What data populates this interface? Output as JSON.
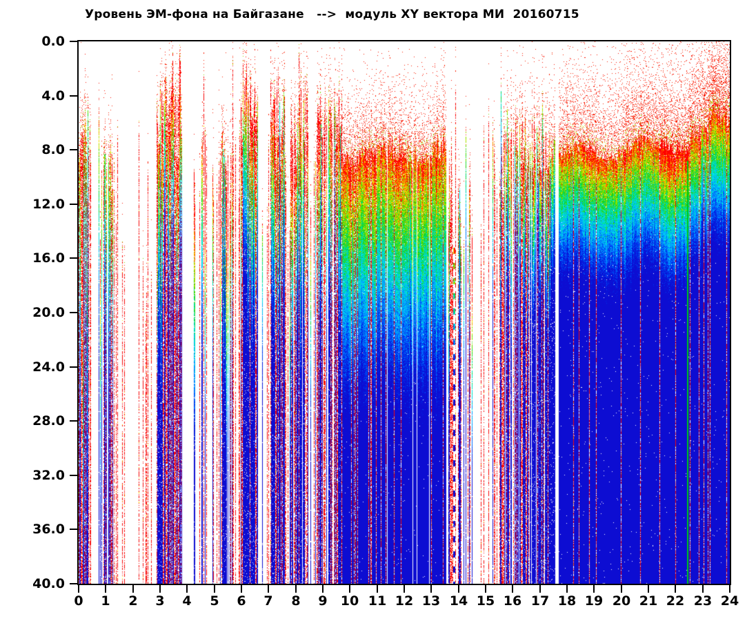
{
  "page": {
    "background": "#ffffff"
  },
  "chart_data": {
    "type": "heatmap",
    "subtype": "daily-spectrogram",
    "title": "Уровень ЭМ-фона на Байгазане   -->  модуль XY вектора МИ  20160715",
    "station": "Байгазан",
    "parameter": "модуль XY вектора МИ",
    "date": "20160715",
    "grid": false,
    "frame_color": "#000000",
    "background_color": "#ffffff",
    "x_axis": {
      "min": 0,
      "max": 24,
      "tick_step": 1,
      "tick_labels": [
        "0",
        "1",
        "2",
        "3",
        "4",
        "5",
        "6",
        "7",
        "8",
        "9",
        "10",
        "11",
        "12",
        "13",
        "14",
        "15",
        "16",
        "17",
        "18",
        "19",
        "20",
        "21",
        "22",
        "23",
        "24"
      ]
    },
    "y_axis": {
      "min": 0,
      "max": 40,
      "tick_step": 4,
      "inverted": true,
      "tick_labels": [
        "0.0",
        "4.0",
        "8.0",
        "12.0",
        "16.0",
        "20.0",
        "24.0",
        "28.0",
        "32.0",
        "36.0",
        "40.0"
      ]
    },
    "colormap": {
      "below_threshold": "#ffffff",
      "stops": [
        {
          "u": 0.0,
          "c": "#ff0000"
        },
        {
          "u": 0.07,
          "c": "#ff5000"
        },
        {
          "u": 0.15,
          "c": "#ffe600"
        },
        {
          "u": 0.24,
          "c": "#8ce600"
        },
        {
          "u": 0.33,
          "c": "#1ed200"
        },
        {
          "u": 0.43,
          "c": "#00dc8c"
        },
        {
          "u": 0.53,
          "c": "#00e6e6"
        },
        {
          "u": 0.65,
          "c": "#00aaff"
        },
        {
          "u": 0.77,
          "c": "#0064ff"
        },
        {
          "u": 0.88,
          "c": "#0028e6"
        },
        {
          "u": 1.0,
          "c": "#0d0dd2"
        }
      ]
    },
    "render_seed": 20160715,
    "activity_segments": [
      {
        "start": 0.0,
        "end": 0.45,
        "mode": "streaks",
        "density": 0.92,
        "ftop": 7.5,
        "ftop_var": 2.0,
        "span": 22,
        "red_streak": 0.28,
        "spread": 2.5
      },
      {
        "start": 0.45,
        "end": 0.7,
        "mode": "gap"
      },
      {
        "start": 0.7,
        "end": 1.25,
        "mode": "streaks",
        "density": 0.85,
        "ftop": 10.0,
        "ftop_var": 2.5,
        "span": 20,
        "red_streak": 0.33,
        "spread": 2.5
      },
      {
        "start": 1.25,
        "end": 1.75,
        "mode": "streaks",
        "density": 0.45,
        "ftop": 13.0,
        "ftop_var": 3.0,
        "span": 18,
        "red_streak": 0.55,
        "spread": 2.0
      },
      {
        "start": 1.75,
        "end": 2.1,
        "mode": "gap"
      },
      {
        "start": 2.1,
        "end": 2.6,
        "mode": "streaks",
        "density": 0.3,
        "ftop": 15.0,
        "ftop_var": 4.0,
        "span": 16,
        "red_streak": 0.7,
        "spread": 1.5
      },
      {
        "start": 2.6,
        "end": 2.85,
        "mode": "streaks",
        "density": 0.15,
        "ftop": 18.0,
        "ftop_var": 4.0,
        "span": 16,
        "red_streak": 0.8,
        "spread": 1.5
      },
      {
        "start": 2.85,
        "end": 3.15,
        "mode": "streaks",
        "density": 0.75,
        "ftop": 6.5,
        "ftop_var": 2.0,
        "span": 14,
        "red_streak": 0.35,
        "spread": 2.5
      },
      {
        "start": 3.15,
        "end": 3.8,
        "mode": "streaks",
        "density": 0.95,
        "ftop": 4.3,
        "ftop_var": 1.5,
        "span": 12,
        "red_streak": 0.3,
        "spread": 2.0
      },
      {
        "start": 3.8,
        "end": 4.15,
        "mode": "gap"
      },
      {
        "start": 4.15,
        "end": 5.1,
        "mode": "streaks",
        "density": 0.32,
        "ftop": 11.0,
        "ftop_var": 3.5,
        "span": 16,
        "red_streak": 0.65,
        "spread": 2.0
      },
      {
        "start": 5.1,
        "end": 5.6,
        "mode": "streaks",
        "density": 0.55,
        "ftop": 9.0,
        "ftop_var": 2.5,
        "span": 16,
        "red_streak": 0.45,
        "spread": 2.5
      },
      {
        "start": 5.6,
        "end": 6.05,
        "mode": "streaks",
        "density": 0.5,
        "ftop": 8.0,
        "ftop_var": 2.5,
        "span": 15,
        "red_streak": 0.45,
        "spread": 2.5
      },
      {
        "start": 6.05,
        "end": 6.6,
        "mode": "streaks",
        "density": 0.92,
        "ftop": 5.0,
        "ftop_var": 1.6,
        "span": 13,
        "red_streak": 0.3,
        "spread": 2.0
      },
      {
        "start": 6.6,
        "end": 7.05,
        "mode": "streaks",
        "density": 0.3,
        "ftop": 11.0,
        "ftop_var": 3.0,
        "span": 15,
        "red_streak": 0.6,
        "spread": 2.0
      },
      {
        "start": 7.05,
        "end": 7.6,
        "mode": "streaks",
        "density": 0.93,
        "ftop": 5.8,
        "ftop_var": 1.6,
        "span": 13,
        "red_streak": 0.3,
        "spread": 2.2
      },
      {
        "start": 7.6,
        "end": 7.8,
        "mode": "streaks",
        "density": 0.25,
        "ftop": 12.0,
        "ftop_var": 3.0,
        "span": 15,
        "red_streak": 0.6,
        "spread": 2.0
      },
      {
        "start": 7.8,
        "end": 8.45,
        "mode": "streaks",
        "density": 0.88,
        "ftop": 6.2,
        "ftop_var": 1.8,
        "span": 14,
        "red_streak": 0.32,
        "spread": 2.5
      },
      {
        "start": 8.45,
        "end": 8.75,
        "mode": "streaks",
        "density": 0.3,
        "ftop": 12.0,
        "ftop_var": 3.0,
        "span": 15,
        "red_streak": 0.55,
        "spread": 2.0
      },
      {
        "start": 8.75,
        "end": 9.7,
        "mode": "streaks",
        "density": 0.88,
        "ftop": 5.8,
        "ftop_var": 1.8,
        "span": 14,
        "red_streak": 0.3,
        "spread": 2.5
      },
      {
        "start": 9.7,
        "end": 13.55,
        "mode": "block",
        "density": 0.985,
        "ftop": 8.2,
        "ftop_var": 1.2,
        "span": 17,
        "red_streak": 0.1,
        "spread": 3.2,
        "cloud": 0.5
      },
      {
        "start": 13.55,
        "end": 13.78,
        "mode": "streaks",
        "density": 0.6,
        "ftop": 13.0,
        "ftop_var": 3.0,
        "span": 14,
        "red_streak": 0.4,
        "spread": 2.0
      },
      {
        "start": 13.78,
        "end": 13.88,
        "mode": "block",
        "density": 1.0,
        "ftop": 15.0,
        "ftop_var": 1.0,
        "span": 10,
        "red_streak": 0.0,
        "spread": 1.0,
        "cloud": 0.2
      },
      {
        "start": 13.88,
        "end": 14.5,
        "mode": "streaks",
        "density": 0.5,
        "ftop": 11.0,
        "ftop_var": 3.5,
        "span": 14,
        "red_streak": 0.45,
        "spread": 2.0
      },
      {
        "start": 14.5,
        "end": 15.25,
        "mode": "streaks",
        "density": 0.12,
        "ftop": 14.0,
        "ftop_var": 5.0,
        "span": 15,
        "red_streak": 0.75,
        "spread": 1.5
      },
      {
        "start": 15.25,
        "end": 15.65,
        "mode": "streaks",
        "density": 0.55,
        "ftop": 9.5,
        "ftop_var": 3.0,
        "span": 15,
        "red_streak": 0.45,
        "spread": 2.2
      },
      {
        "start": 15.65,
        "end": 16.1,
        "mode": "streaks",
        "density": 0.8,
        "ftop": 7.5,
        "ftop_var": 2.0,
        "span": 12,
        "red_streak": 0.3,
        "spread": 2.8
      },
      {
        "start": 16.1,
        "end": 17.55,
        "mode": "streaks",
        "density": 0.94,
        "ftop": 7.8,
        "ftop_var": 1.6,
        "span": 10,
        "red_streak": 0.18,
        "spread": 3.2
      },
      {
        "start": 17.55,
        "end": 17.68,
        "mode": "gap"
      },
      {
        "start": 17.68,
        "end": 20.0,
        "mode": "block",
        "density": 1.0,
        "ftop": 8.2,
        "ftop_var": 0.8,
        "span": 9,
        "red_streak": 0.05,
        "spread": 4.2,
        "cloud": 0.45
      },
      {
        "start": 20.0,
        "end": 21.4,
        "mode": "block",
        "density": 1.0,
        "ftop": 7.8,
        "ftop_var": 0.8,
        "span": 9,
        "red_streak": 0.05,
        "spread": 4.6,
        "cloud": 0.5
      },
      {
        "start": 21.4,
        "end": 22.45,
        "mode": "block",
        "density": 1.0,
        "ftop": 7.5,
        "ftop_var": 0.8,
        "span": 9,
        "red_streak": 0.08,
        "spread": 4.8,
        "cloud": 0.5
      },
      {
        "start": 22.45,
        "end": 23.2,
        "mode": "block",
        "density": 1.0,
        "ftop": 7.0,
        "ftop_var": 0.8,
        "span": 9,
        "red_streak": 0.06,
        "spread": 5.2,
        "cloud": 0.55
      },
      {
        "start": 23.2,
        "end": 24.0,
        "mode": "block",
        "density": 1.0,
        "ftop": 5.8,
        "ftop_var": 0.9,
        "span": 9,
        "red_streak": 0.08,
        "spread": 5.8,
        "cloud": 0.62
      }
    ],
    "features": [
      {
        "type": "dashed-white-line",
        "hour": 13.81
      },
      {
        "type": "white-line",
        "hour": 17.62
      },
      {
        "type": "lighten-band",
        "start": 21.4,
        "end": 22.45,
        "du": -0.11
      },
      {
        "type": "green-line",
        "hour": 22.42,
        "from_freq": 8.8,
        "color": "#00c814"
      }
    ]
  }
}
